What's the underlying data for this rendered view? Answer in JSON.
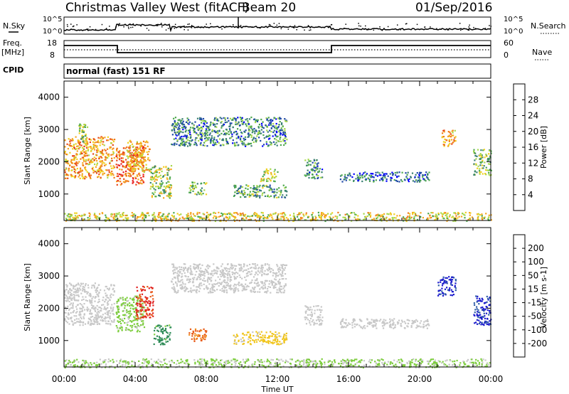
{
  "header": {
    "radar": "Christmas Valley West (fitACF)",
    "beam": "Beam 20",
    "date": "01/Sep/2016"
  },
  "strips": {
    "nsky_label": "N.Sky",
    "nsearch_label": "N.Search",
    "log_top_label": "10^5",
    "log_bottom_label": "10^0",
    "freq_label": "Freq.",
    "freq_unit": "[MHz]",
    "freq_ticks": [
      "18",
      "8"
    ],
    "nave_label": "Nave",
    "nave_ticks": [
      "60",
      "0"
    ],
    "cpid_label": "CPID",
    "cpid_value": "normal (fast) 151 RF"
  },
  "axes": {
    "y_label": "Slant Range [km]",
    "y_ticks": [
      "4000",
      "3000",
      "2000",
      "1000"
    ],
    "x_label": "Time UT",
    "x_ticks": [
      "00:00",
      "04:00",
      "08:00",
      "12:00",
      "16:00",
      "20:00",
      "00:00"
    ]
  },
  "colorbars": {
    "power": {
      "label": "Power [dB]",
      "ticks": [
        "28",
        "24",
        "20",
        "16",
        "12",
        "8",
        "4"
      ],
      "colors": [
        "#0000ff",
        "#1f49a8",
        "#3a7f73",
        "#4da84d",
        "#a6d84a",
        "#f0d020",
        "#f5a623",
        "#f07b1a",
        "#e84818",
        "#e82020"
      ]
    },
    "velocity": {
      "label": "Velocity [m s-1]",
      "ticks": [
        "200",
        "100",
        "50",
        "15",
        "-15",
        "-50",
        "-100",
        "-200"
      ],
      "colors": [
        "#1b1bcc",
        "#2f5da8",
        "#2e8b57",
        "#7ccd3c",
        "#c8c8c8",
        "#f0c419",
        "#f08c1e",
        "#e85c1a",
        "#e02020"
      ]
    }
  },
  "chart_data": [
    {
      "type": "heatmap",
      "title": "Christmas Valley West (fitACF) Beam 20 01/Sep/2016",
      "variable": "Power",
      "units": "dB",
      "xlabel": "Time UT",
      "ylabel": "Slant Range [km]",
      "xlim": [
        "00:00",
        "24:00"
      ],
      "ylim": [
        180,
        4500
      ],
      "clim": [
        0,
        30
      ],
      "features": [
        {
          "t_start": 0.0,
          "t_end": 2.8,
          "r_min": 1500,
          "r_max": 2800,
          "value": 20
        },
        {
          "t_start": 0.8,
          "t_end": 1.3,
          "r_min": 2600,
          "r_max": 3200,
          "value": 12
        },
        {
          "t_start": 2.9,
          "t_end": 4.5,
          "r_min": 1300,
          "r_max": 2500,
          "value": 24
        },
        {
          "t_start": 3.5,
          "t_end": 4.8,
          "r_min": 1700,
          "r_max": 2700,
          "value": 18
        },
        {
          "t_start": 4.8,
          "t_end": 6.0,
          "r_min": 900,
          "r_max": 1900,
          "value": 14
        },
        {
          "t_start": 6.0,
          "t_end": 12.5,
          "r_min": 2500,
          "r_max": 3400,
          "value": 8
        },
        {
          "t_start": 7.0,
          "t_end": 8.0,
          "r_min": 1000,
          "r_max": 1400,
          "value": 12
        },
        {
          "t_start": 9.5,
          "t_end": 12.5,
          "r_min": 900,
          "r_max": 1300,
          "value": 10
        },
        {
          "t_start": 11.0,
          "t_end": 12.0,
          "r_min": 1400,
          "r_max": 1800,
          "value": 14
        },
        {
          "t_start": 13.5,
          "t_end": 14.5,
          "r_min": 1500,
          "r_max": 2100,
          "value": 8
        },
        {
          "t_start": 15.5,
          "t_end": 20.5,
          "r_min": 1400,
          "r_max": 1700,
          "value": 6
        },
        {
          "t_start": 21.2,
          "t_end": 22.0,
          "r_min": 2500,
          "r_max": 3000,
          "value": 20
        },
        {
          "t_start": 23.0,
          "t_end": 24.0,
          "r_min": 1600,
          "r_max": 2400,
          "value": 12
        },
        {
          "t_start": 0.0,
          "t_end": 24.0,
          "r_min": 180,
          "r_max": 450,
          "value": 16
        }
      ]
    },
    {
      "type": "heatmap",
      "title": "Christmas Valley West (fitACF) Beam 20 01/Sep/2016",
      "variable": "Velocity",
      "units": "m s-1",
      "xlabel": "Time UT",
      "ylabel": "Slant Range [km]",
      "xlim": [
        "00:00",
        "24:00"
      ],
      "ylim": [
        180,
        4500
      ],
      "clim": [
        -250,
        250
      ],
      "features": [
        {
          "t_start": 0.0,
          "t_end": 2.8,
          "r_min": 1500,
          "r_max": 2800,
          "value": 0
        },
        {
          "t_start": 2.9,
          "t_end": 4.5,
          "r_min": 1300,
          "r_max": 2400,
          "value": -40
        },
        {
          "t_start": 4.0,
          "t_end": 5.0,
          "r_min": 1700,
          "r_max": 2700,
          "value": 200
        },
        {
          "t_start": 5.0,
          "t_end": 6.0,
          "r_min": 900,
          "r_max": 1500,
          "value": -100
        },
        {
          "t_start": 6.0,
          "t_end": 12.5,
          "r_min": 2500,
          "r_max": 3400,
          "value": 0
        },
        {
          "t_start": 7.0,
          "t_end": 8.0,
          "r_min": 1000,
          "r_max": 1400,
          "value": 150
        },
        {
          "t_start": 9.5,
          "t_end": 12.5,
          "r_min": 900,
          "r_max": 1300,
          "value": 40
        },
        {
          "t_start": 13.5,
          "t_end": 14.5,
          "r_min": 1500,
          "r_max": 2100,
          "value": 0
        },
        {
          "t_start": 15.5,
          "t_end": 20.5,
          "r_min": 1400,
          "r_max": 1700,
          "value": 0
        },
        {
          "t_start": 21.0,
          "t_end": 22.0,
          "r_min": 2400,
          "r_max": 3000,
          "value": -200
        },
        {
          "t_start": 23.0,
          "t_end": 24.0,
          "r_min": 1500,
          "r_max": 2400,
          "value": -200
        },
        {
          "t_start": 0.0,
          "t_end": 24.0,
          "r_min": 180,
          "r_max": 450,
          "value": -30
        }
      ]
    }
  ]
}
